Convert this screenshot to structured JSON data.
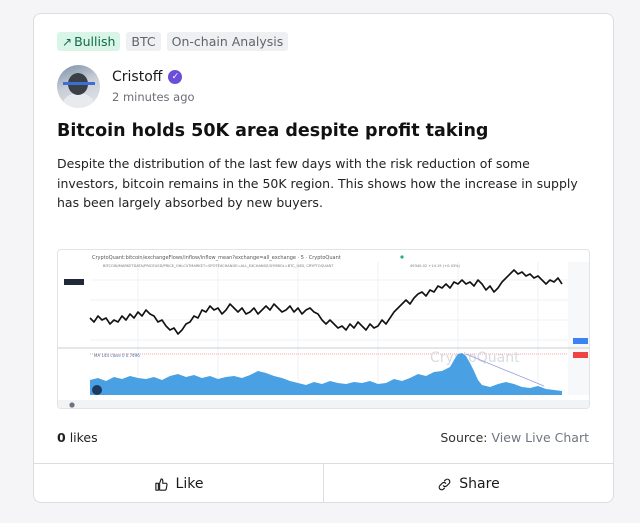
{
  "tags": [
    {
      "label": "Bullish",
      "icon": "trend-up-icon"
    },
    {
      "label": "BTC"
    },
    {
      "label": "On-chain Analysis"
    }
  ],
  "author": {
    "name": "Cristoff",
    "time": "2 minutes ago",
    "verified_icon": "verified-badge-icon"
  },
  "post": {
    "title": "Bitcoin holds 50K area despite profit taking",
    "body": "Despite the distribution of the last few days with the risk reduction of some investors, bitcoin remains in the 50K region. This shows how the increase in supply has been largely absorbed by new buyers."
  },
  "chart_image": {
    "header": "CryptoQuant:bitcoin/exchangeFlows/inflow/inflow_mean?exchange=all_exchange · 5 · CryptoQuant",
    "subheader": "BITCOIN/MARKETDATA/PRICEUSD/PRICE_OHLCV?MARKET=SPOTEXCHANGE=ALL_EXCHANGE/SYMBOL=BTC_USD, CRYPTOQUANT",
    "readout": "49340.02  +14.19 (+0.03%)",
    "indicator": "MA 144 close 0  0.7496",
    "watermark": "CryptoQuant"
  },
  "stats": {
    "likes_count": "0",
    "likes_label": "likes",
    "source_label": "Source:",
    "source_link": "View Live Chart"
  },
  "actions": {
    "like": "Like",
    "share": "Share"
  },
  "colors": {
    "bullish_bg": "#d9f5e7",
    "bullish_text": "#11694a",
    "inflow_area": "#3f9be0",
    "verified": "#6b4fd8"
  }
}
